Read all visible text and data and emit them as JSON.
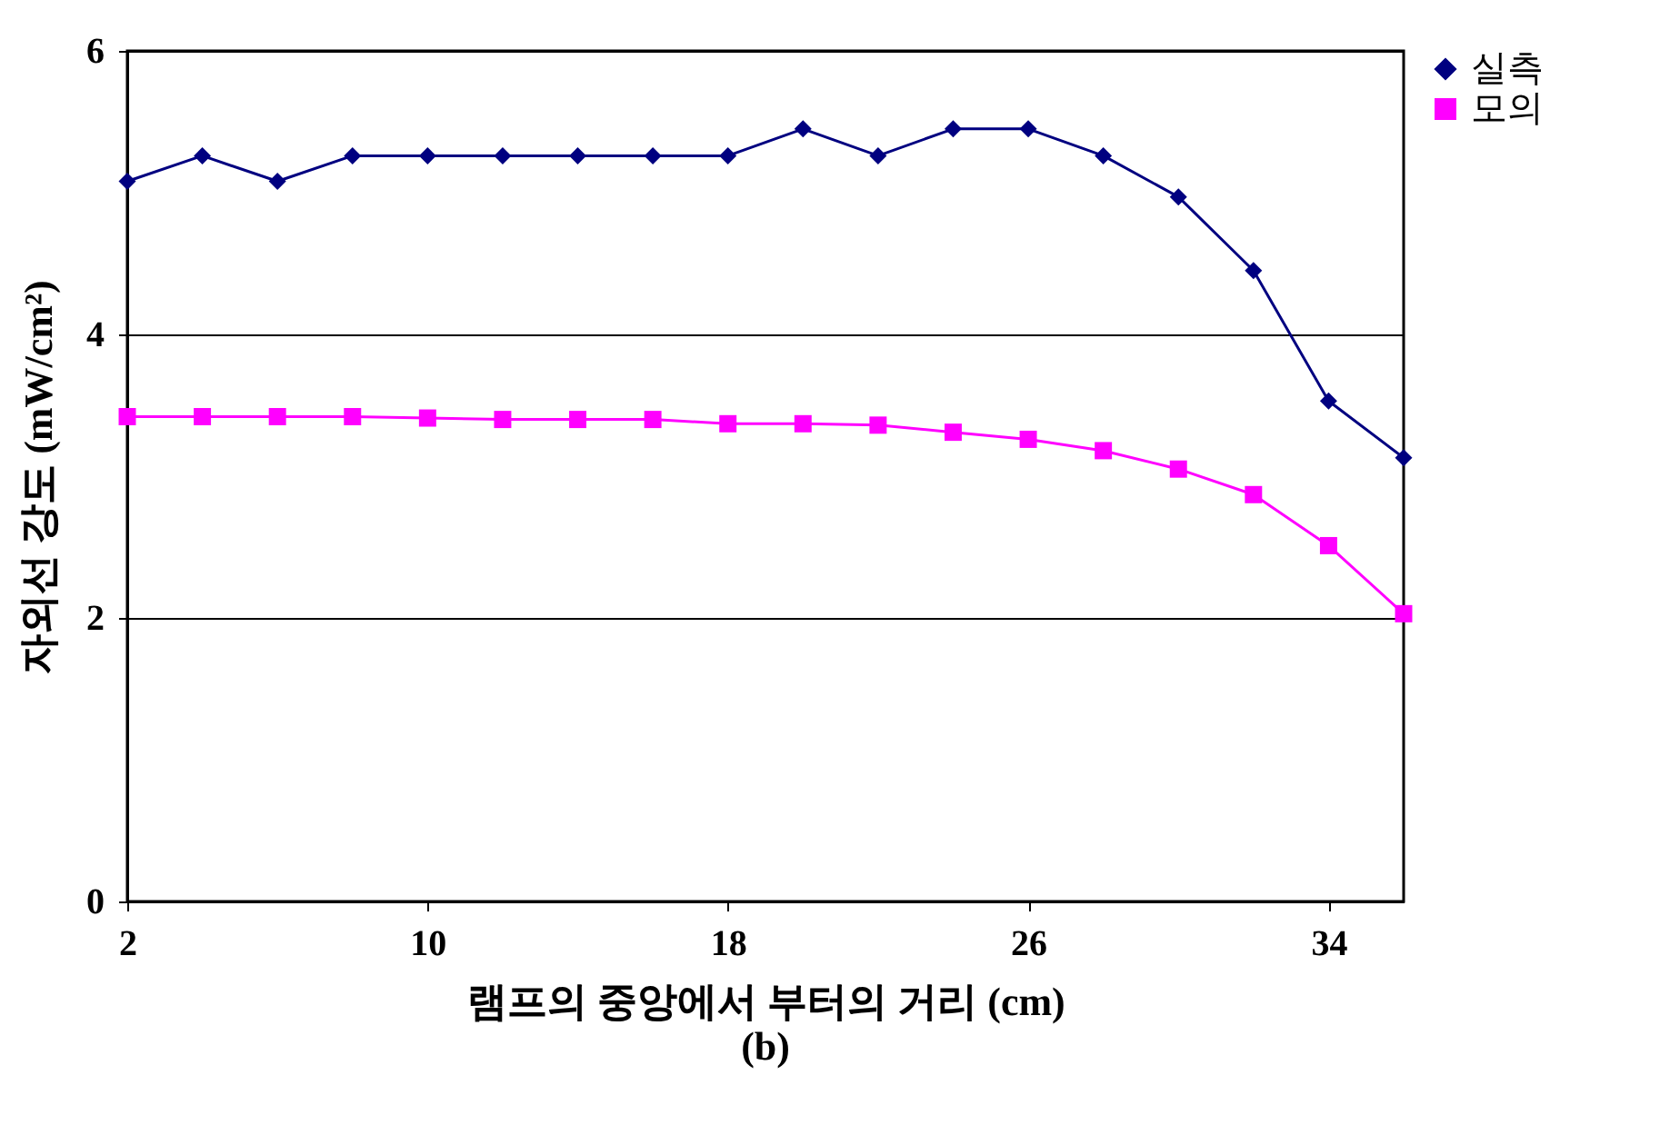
{
  "chart_data": {
    "type": "line",
    "xlabel": "램프의 중앙에서 부터의 거리 (cm)",
    "ylabel": "자외선 강도 (mW/cm²)",
    "x": [
      2,
      4,
      6,
      8,
      10,
      12,
      14,
      16,
      18,
      20,
      22,
      24,
      26,
      28,
      30,
      32,
      34,
      36
    ],
    "xlim": [
      2,
      36
    ],
    "xticks": [
      2,
      10,
      18,
      26,
      34
    ],
    "ylim": [
      0,
      6
    ],
    "yticks": [
      0,
      2,
      4,
      6
    ],
    "grid": "y",
    "legend": "right",
    "series": [
      {
        "name": "실측",
        "color": "#000080",
        "marker": "diamond",
        "values": [
          5.08,
          5.26,
          5.08,
          5.26,
          5.26,
          5.26,
          5.26,
          5.26,
          5.26,
          5.45,
          5.26,
          5.45,
          5.45,
          5.26,
          4.97,
          4.45,
          3.53,
          3.13
        ]
      },
      {
        "name": "모의",
        "color": "#ff00ff",
        "marker": "square",
        "values": [
          3.42,
          3.42,
          3.42,
          3.42,
          3.41,
          3.4,
          3.4,
          3.4,
          3.37,
          3.37,
          3.36,
          3.31,
          3.26,
          3.18,
          3.05,
          2.87,
          2.51,
          2.03
        ]
      }
    ],
    "annotations": [
      "(b)"
    ]
  }
}
